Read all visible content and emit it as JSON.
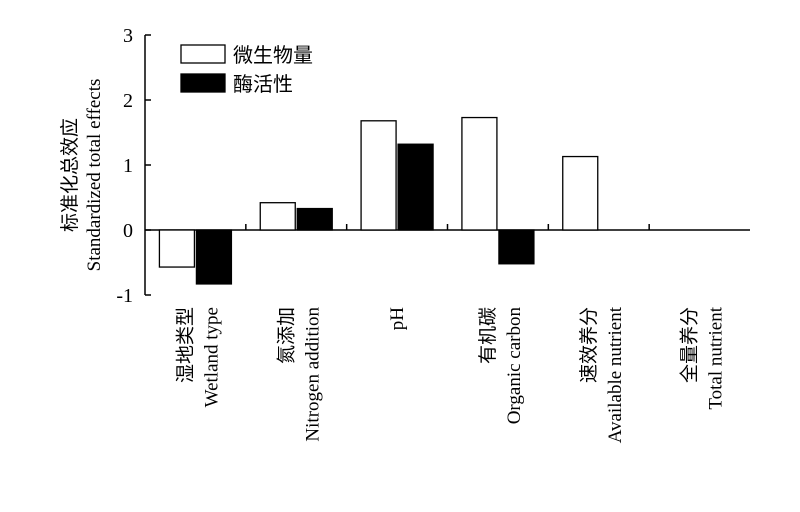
{
  "chart_data": {
    "type": "bar",
    "categories": [
      {
        "cn": "湿地类型",
        "en": "Wetland type"
      },
      {
        "cn": "氮添加",
        "en": "Nitrogen addition"
      },
      {
        "cn": "pH",
        "en": ""
      },
      {
        "cn": "有机碳",
        "en": "Organic carbon"
      },
      {
        "cn": "速效养分",
        "en": "Available nutrient"
      },
      {
        "cn": "全量养分",
        "en": "Total nutrient"
      }
    ],
    "series": [
      {
        "name": "微生物量",
        "color": "#ffffff",
        "values": [
          -0.57,
          0.42,
          1.68,
          1.73,
          1.13,
          null
        ]
      },
      {
        "name": "酶活性",
        "color": "#000000",
        "values": [
          -0.83,
          0.33,
          1.32,
          -0.52,
          null,
          null
        ]
      }
    ],
    "ylabel_cn": "标准化总效应",
    "ylabel_en": "Standardized total effects",
    "ylim": [
      -1,
      3
    ],
    "yticks": [
      "-1",
      "0",
      "1",
      "2",
      "3"
    ],
    "legend_position": "top-left",
    "grid": false
  }
}
